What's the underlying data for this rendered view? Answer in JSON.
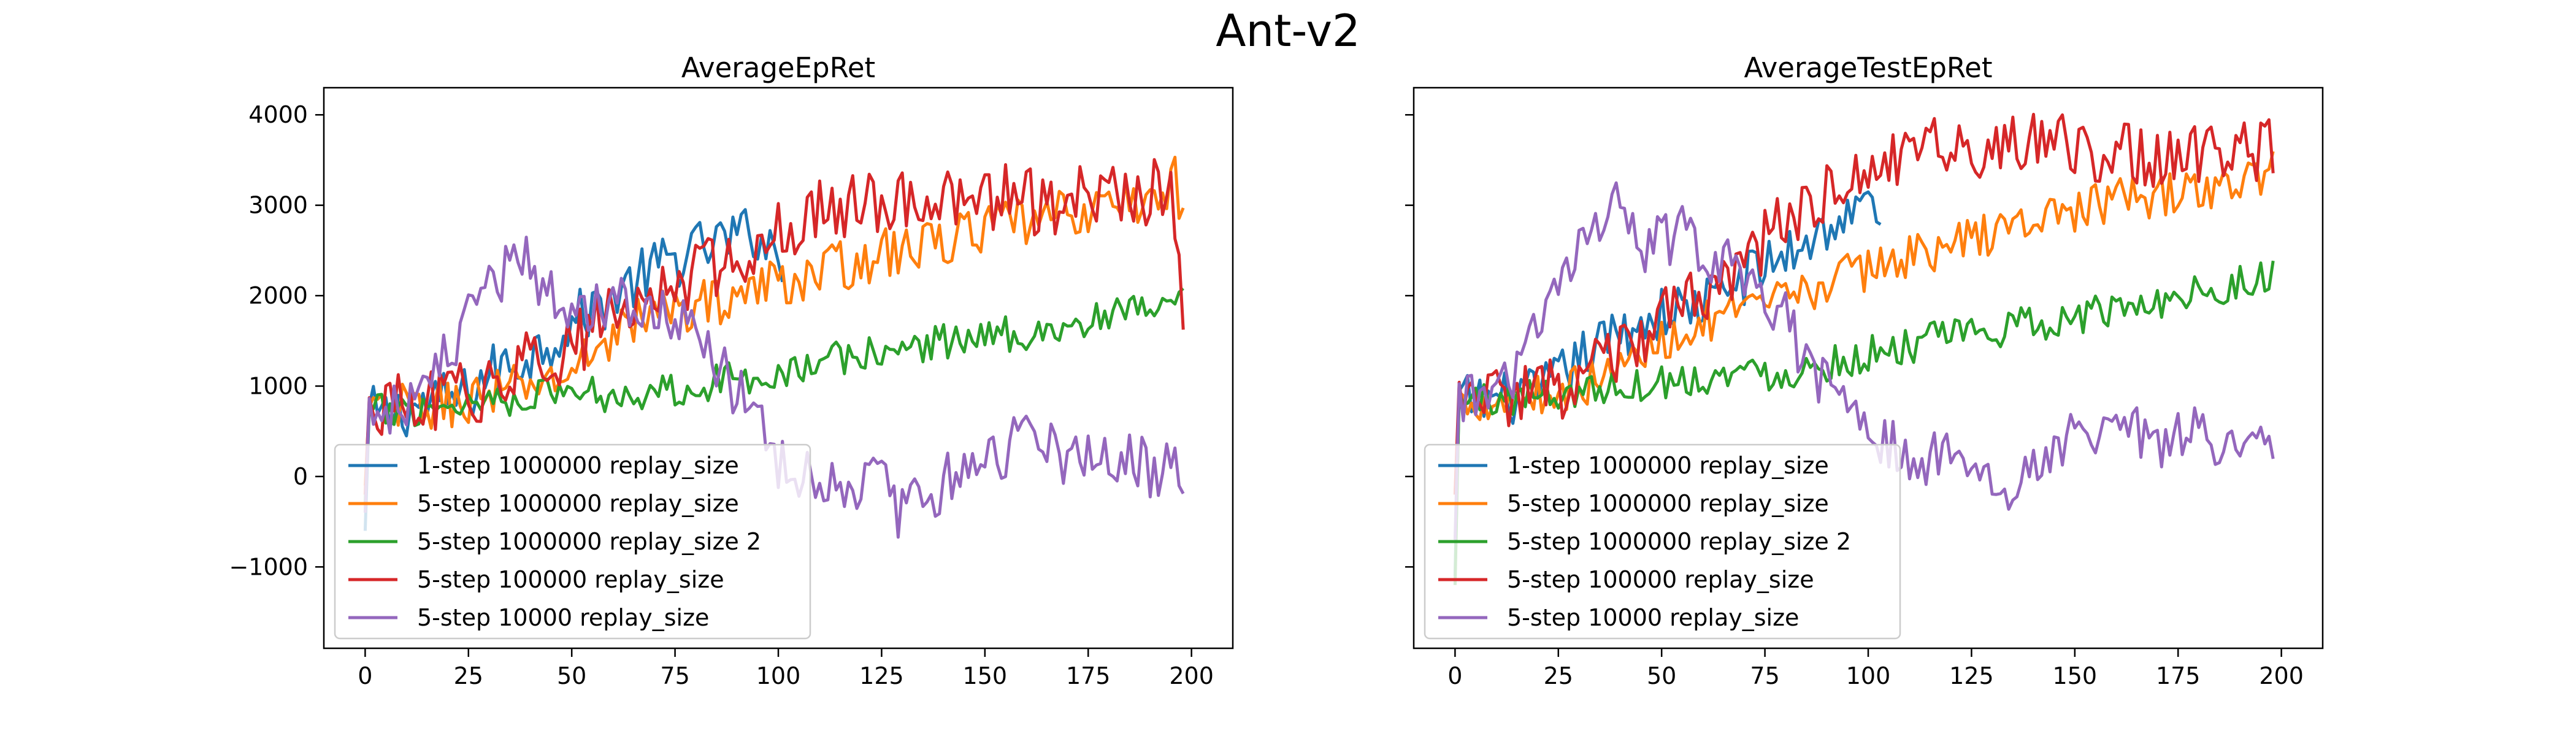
{
  "figure": {
    "suptitle": "Ant-v2"
  },
  "colors": {
    "1-step 1000000 replay_size": "#1f77b4",
    "5-step 1000000 replay_size": "#ff7f0e",
    "5-step 1000000 replay_size 2": "#2ca02c",
    "5-step 100000 replay_size": "#d62728",
    "5-step 10000 replay_size": "#9467bd"
  },
  "chart_data": [
    {
      "type": "line",
      "title": "AverageEpRet",
      "xlabel": "",
      "ylabel": "",
      "xlim": [
        -10,
        210
      ],
      "ylim": [
        -1900,
        4300
      ],
      "xticks": [
        0,
        25,
        50,
        75,
        100,
        125,
        150,
        175,
        200
      ],
      "yticks": [
        -1000,
        0,
        1000,
        2000,
        3000,
        4000
      ],
      "ytick_labels": [
        "−1000",
        "0",
        "1000",
        "2000",
        "3000",
        "4000"
      ],
      "grid": false,
      "legend_position": "lower-left",
      "series": [
        {
          "name": "1-step 1000000 replay_size",
          "x_end": 101,
          "keypoints": [
            [
              0,
              -600
            ],
            [
              1,
              700
            ],
            [
              5,
              650
            ],
            [
              10,
              750
            ],
            [
              15,
              800
            ],
            [
              20,
              850
            ],
            [
              25,
              900
            ],
            [
              30,
              1150
            ],
            [
              40,
              1350
            ],
            [
              50,
              1700
            ],
            [
              60,
              2000
            ],
            [
              70,
              2300
            ],
            [
              80,
              2500
            ],
            [
              90,
              2650
            ],
            [
              95,
              2700
            ],
            [
              101,
              2400
            ]
          ],
          "noise": 320
        },
        {
          "name": "5-step 1000000 replay_size",
          "x_end": 198,
          "keypoints": [
            [
              0,
              -100
            ],
            [
              1,
              700
            ],
            [
              10,
              750
            ],
            [
              20,
              800
            ],
            [
              30,
              900
            ],
            [
              40,
              1000
            ],
            [
              50,
              1150
            ],
            [
              60,
              1600
            ],
            [
              70,
              1800
            ],
            [
              80,
              1900
            ],
            [
              90,
              2000
            ],
            [
              100,
              2150
            ],
            [
              110,
              2250
            ],
            [
              120,
              2400
            ],
            [
              130,
              2500
            ],
            [
              140,
              2600
            ],
            [
              150,
              2750
            ],
            [
              160,
              2800
            ],
            [
              170,
              2900
            ],
            [
              180,
              3000
            ],
            [
              190,
              3050
            ],
            [
              196,
              3300
            ],
            [
              198,
              2750
            ]
          ],
          "noise": 280
        },
        {
          "name": "5-step 1000000 replay_size 2",
          "x_end": 198,
          "keypoints": [
            [
              0,
              -300
            ],
            [
              1,
              700
            ],
            [
              10,
              750
            ],
            [
              20,
              800
            ],
            [
              30,
              850
            ],
            [
              40,
              900
            ],
            [
              50,
              950
            ],
            [
              60,
              900
            ],
            [
              70,
              950
            ],
            [
              80,
              1000
            ],
            [
              90,
              1100
            ],
            [
              100,
              1150
            ],
            [
              110,
              1250
            ],
            [
              120,
              1350
            ],
            [
              130,
              1400
            ],
            [
              140,
              1500
            ],
            [
              150,
              1550
            ],
            [
              160,
              1600
            ],
            [
              170,
              1650
            ],
            [
              180,
              1750
            ],
            [
              190,
              1850
            ],
            [
              198,
              1900
            ]
          ],
          "noise": 200
        },
        {
          "name": "5-step 100000 replay_size",
          "x_end": 198,
          "keypoints": [
            [
              0,
              -200
            ],
            [
              1,
              750
            ],
            [
              10,
              750
            ],
            [
              20,
              850
            ],
            [
              30,
              1000
            ],
            [
              40,
              1250
            ],
            [
              50,
              1450
            ],
            [
              60,
              1750
            ],
            [
              70,
              2000
            ],
            [
              80,
              2250
            ],
            [
              90,
              2450
            ],
            [
              100,
              2750
            ],
            [
              110,
              2900
            ],
            [
              120,
              3050
            ],
            [
              130,
              3100
            ],
            [
              140,
              3000
            ],
            [
              150,
              3100
            ],
            [
              160,
              3050
            ],
            [
              170,
              3050
            ],
            [
              180,
              3100
            ],
            [
              190,
              3100
            ],
            [
              195,
              3300
            ],
            [
              198,
              2000
            ]
          ],
          "noise": 380
        },
        {
          "name": "5-step 10000 replay_size",
          "x_end": 198,
          "keypoints": [
            [
              0,
              -400
            ],
            [
              1,
              750
            ],
            [
              10,
              800
            ],
            [
              15,
              1000
            ],
            [
              20,
              1300
            ],
            [
              25,
              1700
            ],
            [
              30,
              2000
            ],
            [
              35,
              2300
            ],
            [
              38,
              2500
            ],
            [
              45,
              2000
            ],
            [
              50,
              1900
            ],
            [
              60,
              2000
            ],
            [
              70,
              1900
            ],
            [
              80,
              1600
            ],
            [
              90,
              900
            ],
            [
              95,
              600
            ],
            [
              100,
              200
            ],
            [
              110,
              0
            ],
            [
              120,
              -50
            ],
            [
              125,
              -100
            ],
            [
              130,
              -450
            ],
            [
              140,
              -50
            ],
            [
              150,
              200
            ],
            [
              160,
              450
            ],
            [
              170,
              200
            ],
            [
              180,
              250
            ],
            [
              190,
              100
            ],
            [
              198,
              100
            ]
          ],
          "noise": 330
        }
      ]
    },
    {
      "type": "line",
      "title": "AverageTestEpRet",
      "xlabel": "",
      "ylabel": "",
      "xlim": [
        -10,
        210
      ],
      "ylim": [
        -1900,
        4300
      ],
      "xticks": [
        0,
        25,
        50,
        75,
        100,
        125,
        150,
        175,
        200
      ],
      "yticks": [
        -1000,
        0,
        1000,
        2000,
        3000,
        4000
      ],
      "grid": false,
      "legend_position": "lower-left",
      "series": [
        {
          "name": "1-step 1000000 replay_size",
          "x_end": 103,
          "keypoints": [
            [
              0,
              -1100
            ],
            [
              1,
              850
            ],
            [
              10,
              850
            ],
            [
              20,
              900
            ],
            [
              30,
              1300
            ],
            [
              40,
              1600
            ],
            [
              50,
              1800
            ],
            [
              60,
              1900
            ],
            [
              70,
              2200
            ],
            [
              80,
              2450
            ],
            [
              90,
              2750
            ],
            [
              100,
              3000
            ],
            [
              103,
              3000
            ]
          ],
          "noise": 300
        },
        {
          "name": "5-step 1000000 replay_size",
          "x_end": 198,
          "keypoints": [
            [
              0,
              -200
            ],
            [
              1,
              850
            ],
            [
              10,
              850
            ],
            [
              20,
              900
            ],
            [
              30,
              1000
            ],
            [
              40,
              1200
            ],
            [
              50,
              1500
            ],
            [
              60,
              1700
            ],
            [
              70,
              1800
            ],
            [
              80,
              1950
            ],
            [
              90,
              2150
            ],
            [
              100,
              2300
            ],
            [
              110,
              2450
            ],
            [
              120,
              2550
            ],
            [
              130,
              2700
            ],
            [
              140,
              2850
            ],
            [
              150,
              2950
            ],
            [
              160,
              3050
            ],
            [
              170,
              3100
            ],
            [
              180,
              3150
            ],
            [
              190,
              3250
            ],
            [
              198,
              3400
            ]
          ],
          "noise": 240
        },
        {
          "name": "5-step 1000000 replay_size 2",
          "x_end": 198,
          "keypoints": [
            [
              0,
              -1200
            ],
            [
              1,
              850
            ],
            [
              10,
              850
            ],
            [
              20,
              900
            ],
            [
              30,
              950
            ],
            [
              40,
              1000
            ],
            [
              50,
              1050
            ],
            [
              60,
              1100
            ],
            [
              70,
              1150
            ],
            [
              80,
              1150
            ],
            [
              90,
              1250
            ],
            [
              100,
              1350
            ],
            [
              110,
              1450
            ],
            [
              120,
              1550
            ],
            [
              130,
              1600
            ],
            [
              140,
              1700
            ],
            [
              150,
              1750
            ],
            [
              160,
              1850
            ],
            [
              170,
              1950
            ],
            [
              180,
              2050
            ],
            [
              190,
              2150
            ],
            [
              198,
              2200
            ]
          ],
          "noise": 200
        },
        {
          "name": "5-step 100000 replay_size",
          "x_end": 198,
          "keypoints": [
            [
              0,
              -200
            ],
            [
              1,
              900
            ],
            [
              10,
              850
            ],
            [
              20,
              900
            ],
            [
              30,
              1050
            ],
            [
              40,
              1350
            ],
            [
              50,
              1700
            ],
            [
              60,
              2000
            ],
            [
              70,
              2400
            ],
            [
              80,
              2800
            ],
            [
              90,
              3100
            ],
            [
              100,
              3400
            ],
            [
              110,
              3550
            ],
            [
              120,
              3650
            ],
            [
              130,
              3600
            ],
            [
              140,
              3650
            ],
            [
              150,
              3650
            ],
            [
              160,
              3600
            ],
            [
              170,
              3550
            ],
            [
              180,
              3550
            ],
            [
              190,
              3550
            ],
            [
              198,
              3700
            ]
          ],
          "noise": 360
        },
        {
          "name": "5-step 10000 replay_size",
          "x_end": 198,
          "keypoints": [
            [
              0,
              -700
            ],
            [
              1,
              900
            ],
            [
              10,
              900
            ],
            [
              15,
              1200
            ],
            [
              20,
              1600
            ],
            [
              25,
              2100
            ],
            [
              30,
              2500
            ],
            [
              35,
              2800
            ],
            [
              40,
              3000
            ],
            [
              45,
              2500
            ],
            [
              50,
              2600
            ],
            [
              55,
              2700
            ],
            [
              60,
              2500
            ],
            [
              70,
              2200
            ],
            [
              80,
              1800
            ],
            [
              85,
              1200
            ],
            [
              90,
              1000
            ],
            [
              95,
              700
            ],
            [
              100,
              500
            ],
            [
              110,
              200
            ],
            [
              120,
              200
            ],
            [
              130,
              -200
            ],
            [
              140,
              100
            ],
            [
              150,
              450
            ],
            [
              160,
              650
            ],
            [
              165,
              550
            ],
            [
              170,
              300
            ],
            [
              180,
              500
            ],
            [
              190,
              250
            ],
            [
              198,
              450
            ]
          ],
          "noise": 300
        }
      ]
    }
  ]
}
